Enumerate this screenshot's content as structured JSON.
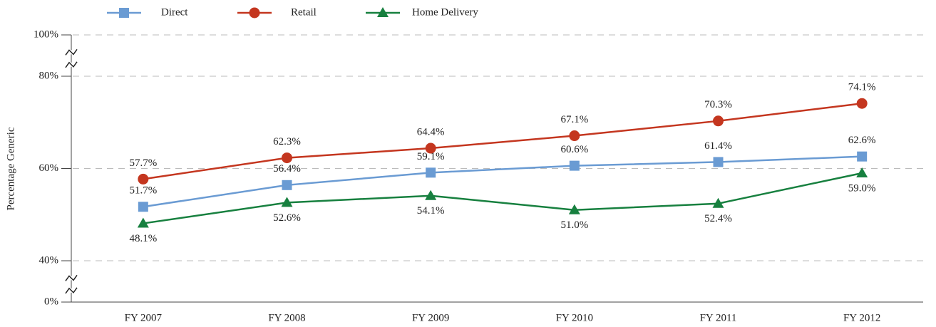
{
  "chart_data": {
    "type": "line",
    "y_label": "Percentage Generic",
    "categories": [
      "FY 2007",
      "FY 2008",
      "FY 2009",
      "FY 2010",
      "FY 2011",
      "FY 2012"
    ],
    "series": [
      {
        "name": "Direct",
        "color": "#6a9bd3",
        "marker": "square",
        "values": [
          51.7,
          56.4,
          59.1,
          60.6,
          61.4,
          62.6
        ],
        "value_labels": [
          "51.7%",
          "56.4%",
          "59.1%",
          "60.6%",
          "61.4%",
          "62.6%"
        ]
      },
      {
        "name": "Retail",
        "color": "#c4361f",
        "marker": "circle",
        "values": [
          57.7,
          62.3,
          64.4,
          67.1,
          70.3,
          74.1
        ],
        "value_labels": [
          "57.7%",
          "62.3%",
          "64.4%",
          "67.1%",
          "70.3%",
          "74.1%"
        ]
      },
      {
        "name": "Home Delivery",
        "color": "#17803f",
        "marker": "triangle",
        "values": [
          48.1,
          52.6,
          54.1,
          51.0,
          52.4,
          59.0
        ],
        "value_labels": [
          "48.1%",
          "52.6%",
          "54.1%",
          "51.0%",
          "52.4%",
          "59.0%"
        ]
      }
    ],
    "ylim": [
      0,
      100
    ],
    "axis_breaks": [
      [
        0,
        40
      ],
      [
        80,
        100
      ]
    ],
    "yticks": [
      {
        "value": 0,
        "label": "0%"
      },
      {
        "value": 40,
        "label": "40%"
      },
      {
        "value": 60,
        "label": "60%"
      },
      {
        "value": 80,
        "label": "80%"
      },
      {
        "value": 100,
        "label": "100%"
      }
    ],
    "grid": true
  }
}
